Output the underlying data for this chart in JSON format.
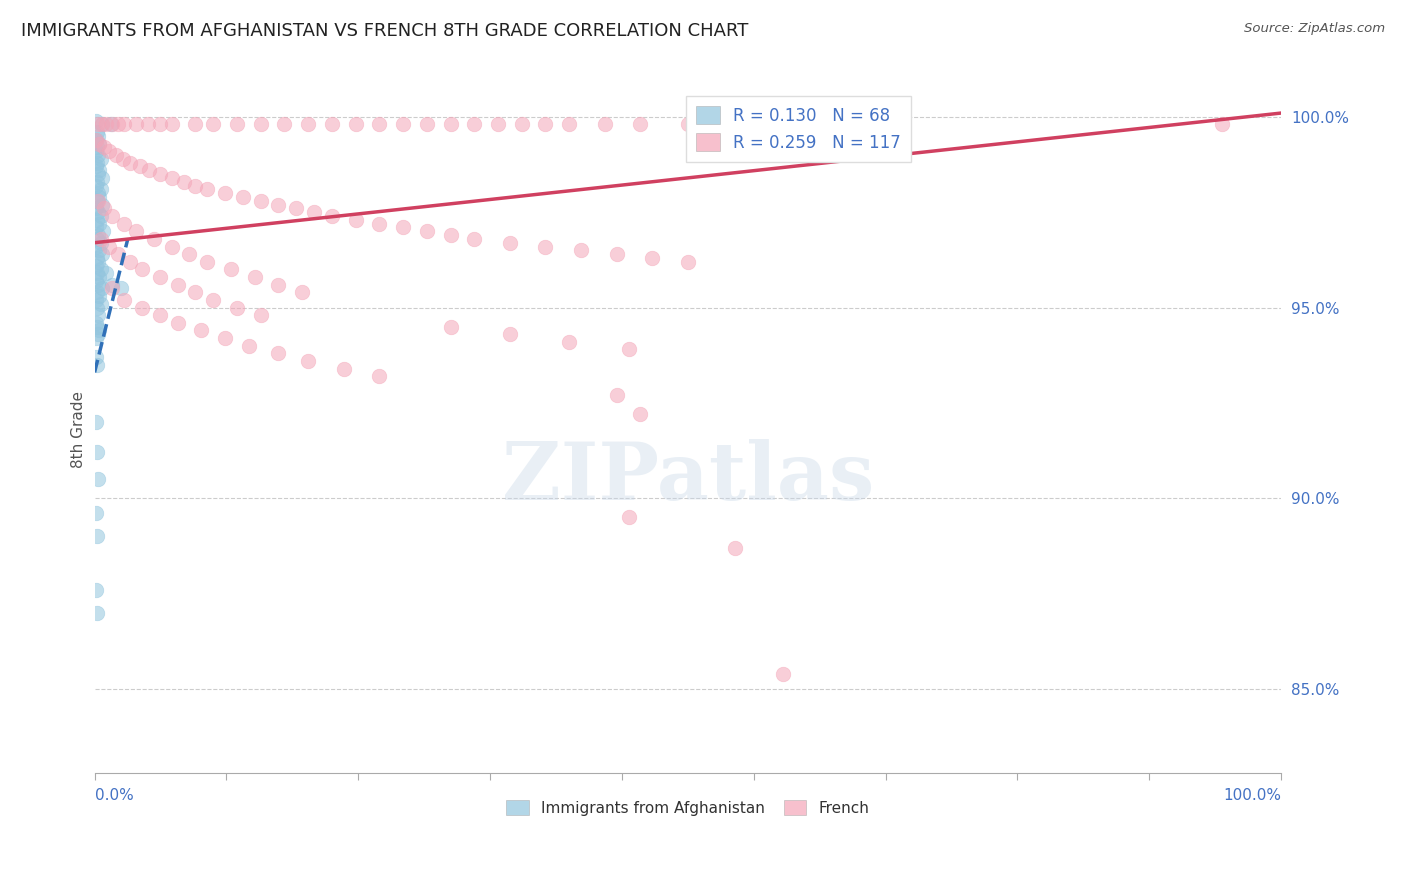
{
  "title": "IMMIGRANTS FROM AFGHANISTAN VS FRENCH 8TH GRADE CORRELATION CHART",
  "source": "Source: ZipAtlas.com",
  "ylabel": "8th Grade",
  "ylabel_right_labels": [
    "85.0%",
    "90.0%",
    "95.0%",
    "100.0%"
  ],
  "ylabel_right_values": [
    0.85,
    0.9,
    0.95,
    1.0
  ],
  "r_blue": 0.13,
  "n_blue": 68,
  "r_pink": 0.259,
  "n_pink": 117,
  "legend_label_blue": "Immigrants from Afghanistan",
  "legend_label_pink": "French",
  "blue_color": "#92c5de",
  "pink_color": "#f4a6b8",
  "trend_blue_color": "#3070b8",
  "trend_pink_color": "#d04060",
  "watermark_text": "ZIPatlas",
  "xlim": [
    0.0,
    1.0
  ],
  "ylim": [
    0.828,
    1.008
  ],
  "blue_trend_x": [
    0.0,
    0.028
  ],
  "blue_trend_y": [
    0.933,
    0.968
  ],
  "pink_trend_x": [
    0.0,
    1.0
  ],
  "pink_trend_y": [
    0.967,
    1.001
  ],
  "blue_points": [
    [
      0.001,
      0.999
    ],
    [
      0.006,
      0.998
    ],
    [
      0.014,
      0.998
    ],
    [
      0.002,
      0.996
    ],
    [
      0.003,
      0.995
    ],
    [
      0.001,
      0.994
    ],
    [
      0.004,
      0.993
    ],
    [
      0.002,
      0.992
    ],
    [
      0.001,
      0.991
    ],
    [
      0.003,
      0.99
    ],
    [
      0.005,
      0.989
    ],
    [
      0.002,
      0.988
    ],
    [
      0.001,
      0.987
    ],
    [
      0.004,
      0.986
    ],
    [
      0.003,
      0.985
    ],
    [
      0.006,
      0.984
    ],
    [
      0.002,
      0.983
    ],
    [
      0.001,
      0.982
    ],
    [
      0.005,
      0.981
    ],
    [
      0.003,
      0.98
    ],
    [
      0.004,
      0.979
    ],
    [
      0.002,
      0.978
    ],
    [
      0.006,
      0.977
    ],
    [
      0.001,
      0.976
    ],
    [
      0.003,
      0.975
    ],
    [
      0.005,
      0.974
    ],
    [
      0.002,
      0.973
    ],
    [
      0.004,
      0.972
    ],
    [
      0.001,
      0.971
    ],
    [
      0.007,
      0.97
    ],
    [
      0.003,
      0.969
    ],
    [
      0.002,
      0.968
    ],
    [
      0.005,
      0.967
    ],
    [
      0.001,
      0.966
    ],
    [
      0.004,
      0.965
    ],
    [
      0.006,
      0.964
    ],
    [
      0.002,
      0.963
    ],
    [
      0.003,
      0.962
    ],
    [
      0.001,
      0.961
    ],
    [
      0.005,
      0.96
    ],
    [
      0.002,
      0.959
    ],
    [
      0.004,
      0.958
    ],
    [
      0.001,
      0.957
    ],
    [
      0.003,
      0.956
    ],
    [
      0.006,
      0.955
    ],
    [
      0.002,
      0.954
    ],
    [
      0.004,
      0.953
    ],
    [
      0.001,
      0.952
    ],
    [
      0.005,
      0.951
    ],
    [
      0.002,
      0.95
    ],
    [
      0.01,
      0.959
    ],
    [
      0.015,
      0.956
    ],
    [
      0.022,
      0.955
    ],
    [
      0.003,
      0.948
    ],
    [
      0.001,
      0.946
    ],
    [
      0.002,
      0.945
    ],
    [
      0.004,
      0.944
    ],
    [
      0.003,
      0.943
    ],
    [
      0.001,
      0.942
    ],
    [
      0.001,
      0.937
    ],
    [
      0.002,
      0.935
    ],
    [
      0.001,
      0.92
    ],
    [
      0.002,
      0.912
    ],
    [
      0.003,
      0.905
    ],
    [
      0.001,
      0.896
    ],
    [
      0.002,
      0.89
    ],
    [
      0.001,
      0.876
    ],
    [
      0.002,
      0.87
    ]
  ],
  "pink_points": [
    [
      0.003,
      0.998
    ],
    [
      0.006,
      0.998
    ],
    [
      0.01,
      0.998
    ],
    [
      0.015,
      0.998
    ],
    [
      0.02,
      0.998
    ],
    [
      0.025,
      0.998
    ],
    [
      0.035,
      0.998
    ],
    [
      0.045,
      0.998
    ],
    [
      0.055,
      0.998
    ],
    [
      0.065,
      0.998
    ],
    [
      0.085,
      0.998
    ],
    [
      0.1,
      0.998
    ],
    [
      0.12,
      0.998
    ],
    [
      0.14,
      0.998
    ],
    [
      0.16,
      0.998
    ],
    [
      0.18,
      0.998
    ],
    [
      0.2,
      0.998
    ],
    [
      0.22,
      0.998
    ],
    [
      0.24,
      0.998
    ],
    [
      0.26,
      0.998
    ],
    [
      0.28,
      0.998
    ],
    [
      0.3,
      0.998
    ],
    [
      0.32,
      0.998
    ],
    [
      0.34,
      0.998
    ],
    [
      0.36,
      0.998
    ],
    [
      0.38,
      0.998
    ],
    [
      0.4,
      0.998
    ],
    [
      0.43,
      0.998
    ],
    [
      0.46,
      0.998
    ],
    [
      0.5,
      0.998
    ],
    [
      0.54,
      0.998
    ],
    [
      0.58,
      0.998
    ],
    [
      0.95,
      0.998
    ],
    [
      0.001,
      0.994
    ],
    [
      0.004,
      0.993
    ],
    [
      0.008,
      0.992
    ],
    [
      0.012,
      0.991
    ],
    [
      0.018,
      0.99
    ],
    [
      0.024,
      0.989
    ],
    [
      0.03,
      0.988
    ],
    [
      0.038,
      0.987
    ],
    [
      0.046,
      0.986
    ],
    [
      0.055,
      0.985
    ],
    [
      0.065,
      0.984
    ],
    [
      0.075,
      0.983
    ],
    [
      0.085,
      0.982
    ],
    [
      0.095,
      0.981
    ],
    [
      0.11,
      0.98
    ],
    [
      0.125,
      0.979
    ],
    [
      0.14,
      0.978
    ],
    [
      0.155,
      0.977
    ],
    [
      0.17,
      0.976
    ],
    [
      0.185,
      0.975
    ],
    [
      0.2,
      0.974
    ],
    [
      0.22,
      0.973
    ],
    [
      0.24,
      0.972
    ],
    [
      0.26,
      0.971
    ],
    [
      0.28,
      0.97
    ],
    [
      0.3,
      0.969
    ],
    [
      0.32,
      0.968
    ],
    [
      0.35,
      0.967
    ],
    [
      0.38,
      0.966
    ],
    [
      0.41,
      0.965
    ],
    [
      0.44,
      0.964
    ],
    [
      0.47,
      0.963
    ],
    [
      0.5,
      0.962
    ],
    [
      0.003,
      0.978
    ],
    [
      0.008,
      0.976
    ],
    [
      0.015,
      0.974
    ],
    [
      0.025,
      0.972
    ],
    [
      0.035,
      0.97
    ],
    [
      0.05,
      0.968
    ],
    [
      0.065,
      0.966
    ],
    [
      0.08,
      0.964
    ],
    [
      0.095,
      0.962
    ],
    [
      0.115,
      0.96
    ],
    [
      0.135,
      0.958
    ],
    [
      0.155,
      0.956
    ],
    [
      0.175,
      0.954
    ],
    [
      0.005,
      0.968
    ],
    [
      0.012,
      0.966
    ],
    [
      0.02,
      0.964
    ],
    [
      0.03,
      0.962
    ],
    [
      0.04,
      0.96
    ],
    [
      0.055,
      0.958
    ],
    [
      0.07,
      0.956
    ],
    [
      0.085,
      0.954
    ],
    [
      0.1,
      0.952
    ],
    [
      0.12,
      0.95
    ],
    [
      0.14,
      0.948
    ],
    [
      0.015,
      0.955
    ],
    [
      0.025,
      0.952
    ],
    [
      0.04,
      0.95
    ],
    [
      0.055,
      0.948
    ],
    [
      0.07,
      0.946
    ],
    [
      0.09,
      0.944
    ],
    [
      0.11,
      0.942
    ],
    [
      0.13,
      0.94
    ],
    [
      0.155,
      0.938
    ],
    [
      0.18,
      0.936
    ],
    [
      0.21,
      0.934
    ],
    [
      0.24,
      0.932
    ],
    [
      0.3,
      0.945
    ],
    [
      0.35,
      0.943
    ],
    [
      0.4,
      0.941
    ],
    [
      0.45,
      0.939
    ],
    [
      0.44,
      0.927
    ],
    [
      0.46,
      0.922
    ],
    [
      0.45,
      0.895
    ],
    [
      0.54,
      0.887
    ],
    [
      0.58,
      0.854
    ]
  ]
}
